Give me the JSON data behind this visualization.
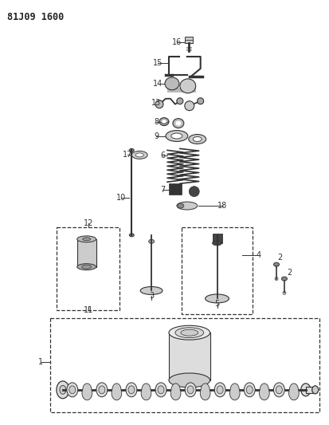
{
  "title": "81J09 1600",
  "background_color": "#ffffff",
  "fig_width": 4.13,
  "fig_height": 5.33,
  "dpi": 100
}
